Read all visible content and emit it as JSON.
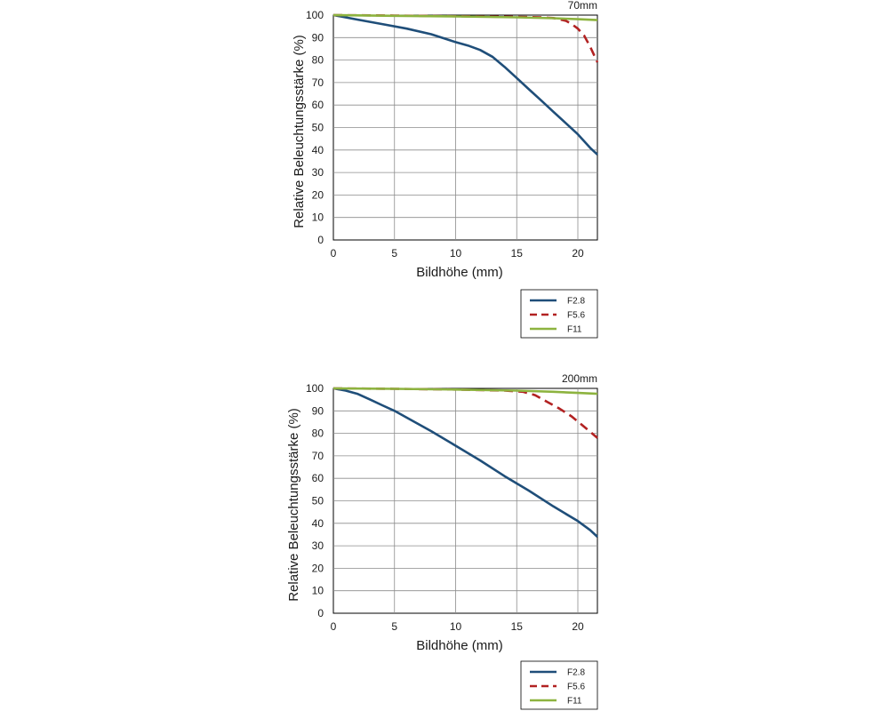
{
  "chart_data": [
    {
      "type": "line",
      "title": "70mm",
      "xlabel": "Bildhöhe (mm)",
      "ylabel": "Relative Beleuchtungsstärke (%)",
      "xlim": [
        0,
        21.6
      ],
      "ylim": [
        0,
        100
      ],
      "xticks": [
        0,
        5,
        10,
        15,
        20
      ],
      "yticks": [
        0,
        10,
        20,
        30,
        40,
        50,
        60,
        70,
        80,
        90,
        100
      ],
      "grid": true,
      "legend_position": "below-right",
      "series": [
        {
          "name": "F2.8",
          "color": "#1f4e79",
          "dash": "solid",
          "x": [
            0,
            2,
            4,
            6,
            8,
            10,
            11,
            12,
            13,
            14,
            15,
            16,
            17,
            18,
            19,
            20,
            21,
            21.6
          ],
          "y": [
            100,
            98,
            96,
            94,
            91.5,
            88,
            86.5,
            84.5,
            81.5,
            77,
            72,
            67,
            62,
            57,
            52,
            47,
            41,
            38
          ]
        },
        {
          "name": "F5.6",
          "color": "#b22222",
          "dash": "dashed",
          "x": [
            0,
            5,
            10,
            15,
            17,
            18,
            19,
            19.5,
            20,
            20.5,
            21,
            21.6
          ],
          "y": [
            100,
            99.8,
            99.5,
            99.2,
            99,
            98.7,
            97.5,
            96,
            94,
            91,
            86,
            79
          ]
        },
        {
          "name": "F11",
          "color": "#8db33f",
          "dash": "solid",
          "x": [
            0,
            5,
            10,
            15,
            18,
            20,
            21.6
          ],
          "y": [
            100,
            99.7,
            99.4,
            99,
            98.6,
            98.2,
            97.8
          ]
        }
      ]
    },
    {
      "type": "line",
      "title": "200mm",
      "xlabel": "Bildhöhe (mm)",
      "ylabel": "Relative Beleuchtungsstärke (%)",
      "xlim": [
        0,
        21.6
      ],
      "ylim": [
        0,
        100
      ],
      "xticks": [
        0,
        5,
        10,
        15,
        20
      ],
      "yticks": [
        0,
        10,
        20,
        30,
        40,
        50,
        60,
        70,
        80,
        90,
        100
      ],
      "grid": true,
      "legend_position": "below-right",
      "series": [
        {
          "name": "F2.8",
          "color": "#1f4e79",
          "dash": "solid",
          "x": [
            0,
            1,
            2,
            3,
            4,
            5,
            6,
            8,
            10,
            12,
            14,
            16,
            18,
            20,
            21,
            21.6
          ],
          "y": [
            100,
            99,
            97.5,
            95,
            92.5,
            90,
            87,
            81,
            74.5,
            68,
            61,
            54.5,
            47.5,
            41,
            37,
            34
          ]
        },
        {
          "name": "F5.6",
          "color": "#b22222",
          "dash": "dashed",
          "x": [
            0,
            5,
            10,
            14,
            15.5,
            16.5,
            17.5,
            18.5,
            19.5,
            20.5,
            21.6
          ],
          "y": [
            100,
            99.8,
            99.5,
            99,
            98.5,
            97,
            94,
            91,
            87.5,
            83,
            78
          ]
        },
        {
          "name": "F11",
          "color": "#8db33f",
          "dash": "solid",
          "x": [
            0,
            5,
            10,
            15,
            18,
            20,
            21.6
          ],
          "y": [
            100,
            99.8,
            99.5,
            99,
            98.5,
            98,
            97.6
          ]
        }
      ]
    }
  ]
}
